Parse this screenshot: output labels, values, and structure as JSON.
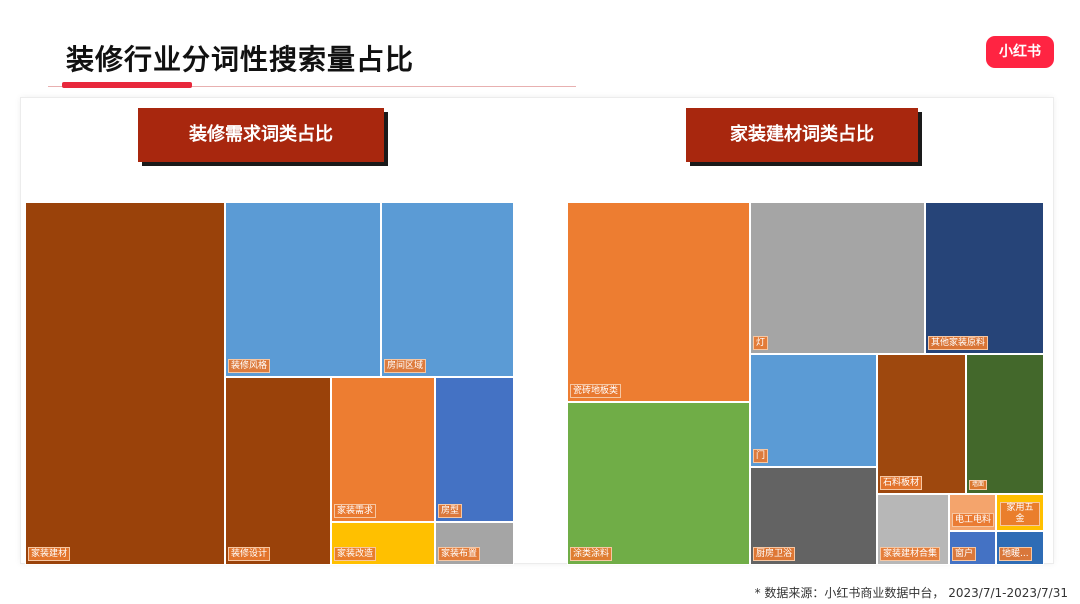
{
  "page": {
    "title": "装修行业分词性搜索量占比",
    "logo_text": "小红书",
    "source_note": "* 数据来源：小红书商业数据中台， 2023/7/1-2023/7/31",
    "colors": {
      "accent_red": "#e8283c",
      "banner": "#a8270e",
      "logo": "#ff2442"
    }
  },
  "chart_data": [
    {
      "type": "treemap",
      "title": "装修需求词类占比",
      "items": [
        {
          "label": "家装建材",
          "share": 41.0,
          "color": "#9a420a"
        },
        {
          "label": "装修风格",
          "share": 15.1,
          "color": "#5b9bd5"
        },
        {
          "label": "房间区域",
          "share": 12.8,
          "color": "#5b9bd5"
        },
        {
          "label": "装修设计",
          "share": 10.5,
          "color": "#9a420a"
        },
        {
          "label": "家装需求",
          "share": 7.8,
          "color": "#ed7d31"
        },
        {
          "label": "房型",
          "share": 5.8,
          "color": "#4472c4"
        },
        {
          "label": "家装改造",
          "share": 2.3,
          "color": "#ffc000"
        },
        {
          "label": "家装布置",
          "share": 1.7,
          "color": "#a5a5a5"
        }
      ]
    },
    {
      "type": "treemap",
      "title": "家装建材词类占比",
      "items": [
        {
          "label": "瓷砖地板类",
          "share": 21.0,
          "color": "#ed7d31"
        },
        {
          "label": "涂类涂料",
          "share": 17.2,
          "color": "#70ad47"
        },
        {
          "label": "灯",
          "share": 14.6,
          "color": "#a5a5a5"
        },
        {
          "label": "其他家装原料",
          "share": 11.5,
          "color": "#264478"
        },
        {
          "label": "门",
          "share": 8.8,
          "color": "#5b9bd5"
        },
        {
          "label": "厨房卫浴",
          "share": 7.8,
          "color": "#636363"
        },
        {
          "label": "石料板材",
          "share": 5.9,
          "color": "#9e480e"
        },
        {
          "label": "墙面",
          "share": 4.6,
          "color": "#43682b"
        },
        {
          "label": "家装建材合集",
          "share": 3.6,
          "color": "#b7b7b7"
        },
        {
          "label": "电工电料",
          "share": 1.4,
          "color": "#f4a46c"
        },
        {
          "label": "家用五金",
          "share": 1.2,
          "color": "#ffc000"
        },
        {
          "label": "窗户",
          "share": 1.2,
          "color": "#4472c4"
        },
        {
          "label": "地暖...",
          "share": 1.0,
          "color": "#2e6cb5"
        }
      ]
    }
  ]
}
